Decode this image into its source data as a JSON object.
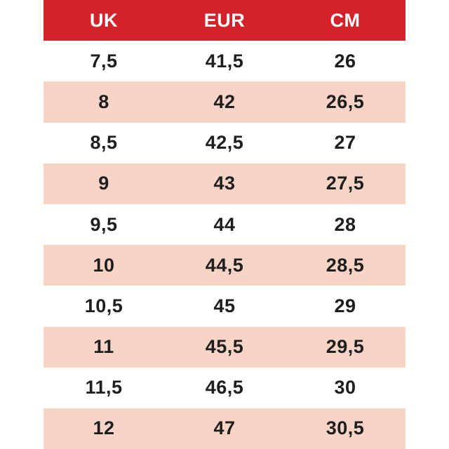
{
  "chart_data": {
    "type": "table",
    "description": "Shoe size conversion table",
    "columns": [
      "UK",
      "EUR",
      "CM"
    ],
    "rows": [
      [
        "7,5",
        "41,5",
        "26"
      ],
      [
        "8",
        "42",
        "26,5"
      ],
      [
        "8,5",
        "42,5",
        "27"
      ],
      [
        "9",
        "43",
        "27,5"
      ],
      [
        "9,5",
        "44",
        "28"
      ],
      [
        "10",
        "44,5",
        "28,5"
      ],
      [
        "10,5",
        "45",
        "29"
      ],
      [
        "11",
        "45,5",
        "29,5"
      ],
      [
        "11,5",
        "46,5",
        "30"
      ],
      [
        "12",
        "47",
        "30,5"
      ]
    ],
    "layout": {
      "header_position": "top",
      "row_striping": "even rows shaded",
      "decimal_separator": ","
    }
  },
  "colors": {
    "header_bg": "#d2232a",
    "header_text": "#ffffff",
    "row_alt_bg": "#f7d4c5",
    "row_bg": "#ffffff",
    "cell_text": "#1e1e1e"
  }
}
